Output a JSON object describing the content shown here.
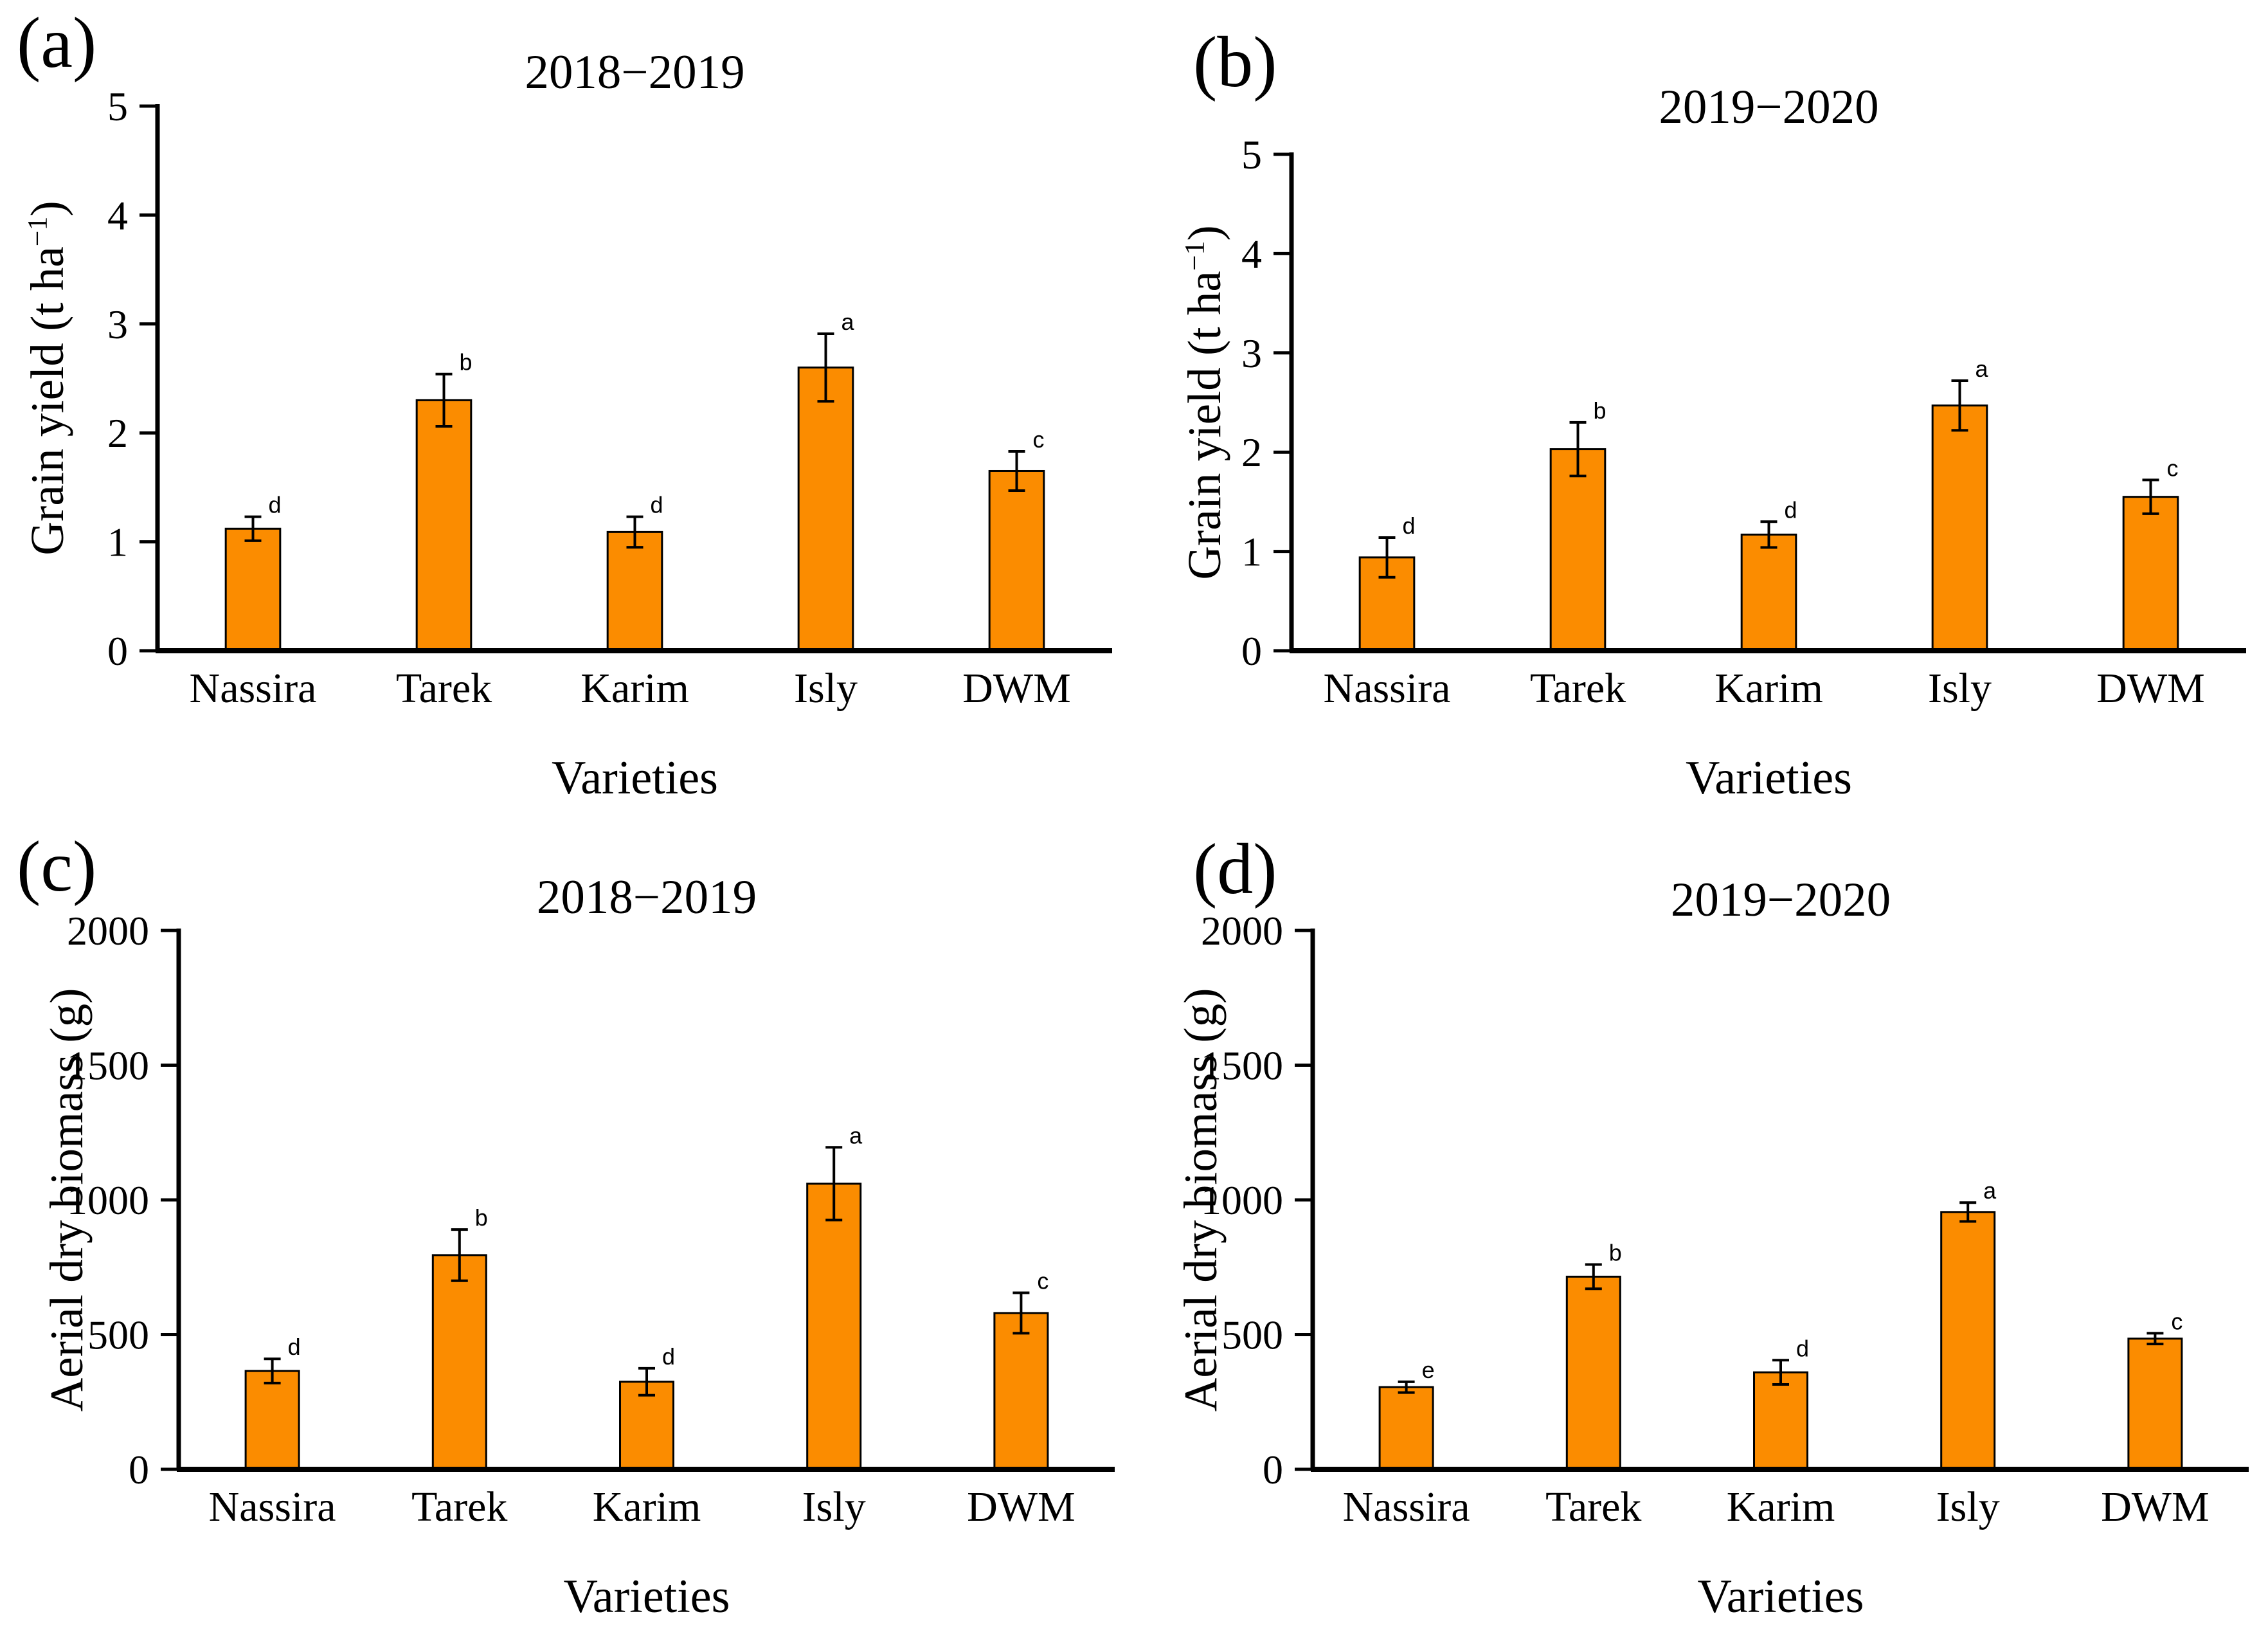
{
  "figure": {
    "background": "#FFFFFF",
    "bar_fill_color": "#FB8C00",
    "bar_border_color": "#000000",
    "error_bar_color": "#000000",
    "axis_color": "#000000",
    "text_color": "#000000"
  },
  "chart_data": [
    {
      "type": "bar",
      "tag": "(a)",
      "title": "2018−2019",
      "xlabel": "Varieties",
      "ylabel_pre": "Grain yield (t ha",
      "ylabel_sup": "−1",
      "ylabel_post": ")",
      "ylim": [
        0,
        5
      ],
      "yticks": [
        0,
        1,
        2,
        3,
        4,
        5
      ],
      "grid": false,
      "legend": null,
      "categories": [
        "Nassira",
        "Tarek",
        "Karim",
        "Isly",
        "DWM"
      ],
      "values": [
        1.12,
        2.3,
        1.09,
        2.6,
        1.65
      ],
      "errors": [
        0.11,
        0.24,
        0.14,
        0.31,
        0.18
      ],
      "sig_letters": [
        "d",
        "b",
        "d",
        "a",
        "c"
      ]
    },
    {
      "type": "bar",
      "tag": "(b)",
      "title": "2019−2020",
      "xlabel": "Varieties",
      "ylabel_pre": "Grain yield (t ha",
      "ylabel_sup": "−1",
      "ylabel_post": ")",
      "ylim": [
        0,
        5
      ],
      "yticks": [
        0,
        1,
        2,
        3,
        4,
        5
      ],
      "grid": false,
      "legend": null,
      "categories": [
        "Nassira",
        "Tarek",
        "Karim",
        "Isly",
        "DWM"
      ],
      "values": [
        0.94,
        2.03,
        1.17,
        2.47,
        1.55
      ],
      "errors": [
        0.2,
        0.27,
        0.13,
        0.25,
        0.17
      ],
      "sig_letters": [
        "d",
        "b",
        "d",
        "a",
        "c"
      ]
    },
    {
      "type": "bar",
      "tag": "(c)",
      "title": "2018−2019",
      "xlabel": "Varieties",
      "ylabel_pre": "Aerial dry biomass (g)",
      "ylabel_sup": "",
      "ylabel_post": "",
      "ylim": [
        0,
        2000
      ],
      "yticks": [
        0,
        500,
        1000,
        1500,
        2000
      ],
      "grid": false,
      "legend": null,
      "categories": [
        "Nassira",
        "Tarek",
        "Karim",
        "Isly",
        "DWM"
      ],
      "values": [
        365,
        795,
        325,
        1060,
        580
      ],
      "errors": [
        45,
        95,
        50,
        135,
        75
      ],
      "sig_letters": [
        "d",
        "b",
        "d",
        "a",
        "c"
      ]
    },
    {
      "type": "bar",
      "tag": "(d)",
      "title": "2019−2020",
      "xlabel": "Varieties",
      "ylabel_pre": "Aerial dry biomass (g)",
      "ylabel_sup": "",
      "ylabel_post": "",
      "ylim": [
        0,
        2000
      ],
      "yticks": [
        0,
        500,
        1000,
        1500,
        2000
      ],
      "grid": false,
      "legend": null,
      "categories": [
        "Nassira",
        "Tarek",
        "Karim",
        "Isly",
        "DWM"
      ],
      "values": [
        305,
        715,
        360,
        955,
        485
      ],
      "errors": [
        20,
        45,
        45,
        35,
        20
      ],
      "sig_letters": [
        "e",
        "b",
        "d",
        "a",
        "c"
      ]
    }
  ]
}
